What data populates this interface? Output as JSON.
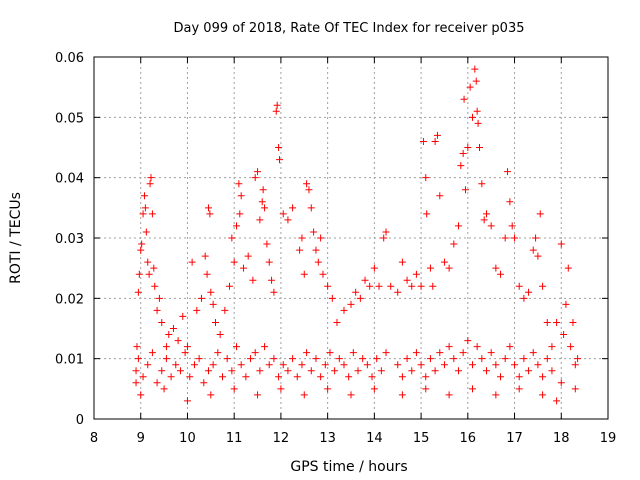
{
  "chart_data": {
    "type": "scatter",
    "title": "Day 099 of 2018, Rate Of TEC Index for receiver p035",
    "xlabel": "GPS time / hours",
    "ylabel": "ROTI / TECUs",
    "xlim": [
      8,
      19
    ],
    "ylim": [
      0,
      0.06
    ],
    "xticks": [
      8,
      9,
      10,
      11,
      12,
      13,
      14,
      15,
      16,
      17,
      18,
      19
    ],
    "yticks": [
      0,
      0.01,
      0.02,
      0.03,
      0.04,
      0.05,
      0.06
    ],
    "ytick_labels": [
      "0",
      "0.01",
      "0.02",
      "0.03",
      "0.04",
      "0.05",
      "0.06"
    ],
    "grid": true,
    "marker": "+",
    "color": "#ff0000",
    "series": [
      {
        "name": "p035",
        "points": [
          [
            8.9,
            0.008
          ],
          [
            8.92,
            0.012
          ],
          [
            8.95,
            0.021
          ],
          [
            8.97,
            0.024
          ],
          [
            9.0,
            0.028
          ],
          [
            9.02,
            0.029
          ],
          [
            9.05,
            0.034
          ],
          [
            9.08,
            0.037
          ],
          [
            9.1,
            0.035
          ],
          [
            9.12,
            0.031
          ],
          [
            9.15,
            0.026
          ],
          [
            9.18,
            0.024
          ],
          [
            9.2,
            0.039
          ],
          [
            9.22,
            0.04
          ],
          [
            9.25,
            0.034
          ],
          [
            9.28,
            0.025
          ],
          [
            9.3,
            0.022
          ],
          [
            9.35,
            0.018
          ],
          [
            9.4,
            0.02
          ],
          [
            9.45,
            0.016
          ],
          [
            9.55,
            0.012
          ],
          [
            9.6,
            0.014
          ],
          [
            9.7,
            0.015
          ],
          [
            9.8,
            0.013
          ],
          [
            9.9,
            0.017
          ],
          [
            10.0,
            0.012
          ],
          [
            10.1,
            0.026
          ],
          [
            10.2,
            0.018
          ],
          [
            10.3,
            0.02
          ],
          [
            10.38,
            0.027
          ],
          [
            10.42,
            0.024
          ],
          [
            10.45,
            0.035
          ],
          [
            10.48,
            0.034
          ],
          [
            10.5,
            0.021
          ],
          [
            10.55,
            0.019
          ],
          [
            10.6,
            0.016
          ],
          [
            10.7,
            0.014
          ],
          [
            10.8,
            0.018
          ],
          [
            10.9,
            0.022
          ],
          [
            10.95,
            0.03
          ],
          [
            11.0,
            0.026
          ],
          [
            11.05,
            0.032
          ],
          [
            11.1,
            0.039
          ],
          [
            11.12,
            0.034
          ],
          [
            11.15,
            0.037
          ],
          [
            11.2,
            0.025
          ],
          [
            11.3,
            0.027
          ],
          [
            11.4,
            0.023
          ],
          [
            11.45,
            0.04
          ],
          [
            11.5,
            0.041
          ],
          [
            11.55,
            0.033
          ],
          [
            11.6,
            0.036
          ],
          [
            11.62,
            0.038
          ],
          [
            11.65,
            0.035
          ],
          [
            11.7,
            0.029
          ],
          [
            11.75,
            0.026
          ],
          [
            11.8,
            0.023
          ],
          [
            11.85,
            0.021
          ],
          [
            11.9,
            0.051
          ],
          [
            11.92,
            0.052
          ],
          [
            11.95,
            0.045
          ],
          [
            11.97,
            0.043
          ],
          [
            12.05,
            0.034
          ],
          [
            12.15,
            0.033
          ],
          [
            12.25,
            0.035
          ],
          [
            12.4,
            0.028
          ],
          [
            12.45,
            0.03
          ],
          [
            12.5,
            0.024
          ],
          [
            12.55,
            0.039
          ],
          [
            12.6,
            0.038
          ],
          [
            12.65,
            0.035
          ],
          [
            12.7,
            0.031
          ],
          [
            12.75,
            0.028
          ],
          [
            12.8,
            0.026
          ],
          [
            12.85,
            0.03
          ],
          [
            12.9,
            0.024
          ],
          [
            13.0,
            0.022
          ],
          [
            13.1,
            0.02
          ],
          [
            13.2,
            0.016
          ],
          [
            13.35,
            0.018
          ],
          [
            13.5,
            0.019
          ],
          [
            13.6,
            0.021
          ],
          [
            13.7,
            0.02
          ],
          [
            13.8,
            0.023
          ],
          [
            13.9,
            0.022
          ],
          [
            14.0,
            0.025
          ],
          [
            14.1,
            0.022
          ],
          [
            14.2,
            0.03
          ],
          [
            14.25,
            0.031
          ],
          [
            14.35,
            0.022
          ],
          [
            14.5,
            0.021
          ],
          [
            14.6,
            0.026
          ],
          [
            14.7,
            0.023
          ],
          [
            14.8,
            0.022
          ],
          [
            14.9,
            0.024
          ],
          [
            15.0,
            0.022
          ],
          [
            15.05,
            0.046
          ],
          [
            15.1,
            0.04
          ],
          [
            15.12,
            0.034
          ],
          [
            15.2,
            0.025
          ],
          [
            15.25,
            0.022
          ],
          [
            15.3,
            0.046
          ],
          [
            15.35,
            0.047
          ],
          [
            15.4,
            0.037
          ],
          [
            15.5,
            0.026
          ],
          [
            15.6,
            0.025
          ],
          [
            15.7,
            0.029
          ],
          [
            15.8,
            0.032
          ],
          [
            15.85,
            0.042
          ],
          [
            15.9,
            0.044
          ],
          [
            15.92,
            0.053
          ],
          [
            15.95,
            0.038
          ],
          [
            16.0,
            0.045
          ],
          [
            16.05,
            0.055
          ],
          [
            16.1,
            0.05
          ],
          [
            16.15,
            0.058
          ],
          [
            16.18,
            0.056
          ],
          [
            16.2,
            0.051
          ],
          [
            16.22,
            0.049
          ],
          [
            16.25,
            0.045
          ],
          [
            16.3,
            0.039
          ],
          [
            16.35,
            0.033
          ],
          [
            16.4,
            0.034
          ],
          [
            16.5,
            0.032
          ],
          [
            16.6,
            0.025
          ],
          [
            16.7,
            0.024
          ],
          [
            16.8,
            0.03
          ],
          [
            16.85,
            0.041
          ],
          [
            16.9,
            0.036
          ],
          [
            16.95,
            0.032
          ],
          [
            17.0,
            0.03
          ],
          [
            17.1,
            0.022
          ],
          [
            17.2,
            0.02
          ],
          [
            17.3,
            0.021
          ],
          [
            17.4,
            0.028
          ],
          [
            17.45,
            0.03
          ],
          [
            17.5,
            0.027
          ],
          [
            17.55,
            0.034
          ],
          [
            17.6,
            0.022
          ],
          [
            17.7,
            0.016
          ],
          [
            17.8,
            0.012
          ],
          [
            17.9,
            0.016
          ],
          [
            18.0,
            0.029
          ],
          [
            18.05,
            0.014
          ],
          [
            18.1,
            0.019
          ],
          [
            18.15,
            0.025
          ],
          [
            18.2,
            0.012
          ],
          [
            18.25,
            0.016
          ],
          [
            18.3,
            0.009
          ],
          [
            18.35,
            0.01
          ],
          [
            8.9,
            0.006
          ],
          [
            8.95,
            0.01
          ],
          [
            9.05,
            0.007
          ],
          [
            9.15,
            0.009
          ],
          [
            9.25,
            0.011
          ],
          [
            9.35,
            0.006
          ],
          [
            9.45,
            0.008
          ],
          [
            9.55,
            0.01
          ],
          [
            9.65,
            0.007
          ],
          [
            9.75,
            0.009
          ],
          [
            9.85,
            0.008
          ],
          [
            9.95,
            0.011
          ],
          [
            10.05,
            0.007
          ],
          [
            10.15,
            0.009
          ],
          [
            10.25,
            0.01
          ],
          [
            10.35,
            0.006
          ],
          [
            10.45,
            0.008
          ],
          [
            10.55,
            0.009
          ],
          [
            10.65,
            0.011
          ],
          [
            10.75,
            0.007
          ],
          [
            10.85,
            0.01
          ],
          [
            10.95,
            0.008
          ],
          [
            11.05,
            0.012
          ],
          [
            11.15,
            0.009
          ],
          [
            11.25,
            0.007
          ],
          [
            11.35,
            0.01
          ],
          [
            11.45,
            0.011
          ],
          [
            11.55,
            0.008
          ],
          [
            11.65,
            0.012
          ],
          [
            11.75,
            0.009
          ],
          [
            11.85,
            0.01
          ],
          [
            11.95,
            0.007
          ],
          [
            12.05,
            0.009
          ],
          [
            12.15,
            0.008
          ],
          [
            12.25,
            0.01
          ],
          [
            12.35,
            0.007
          ],
          [
            12.45,
            0.009
          ],
          [
            12.55,
            0.011
          ],
          [
            12.65,
            0.008
          ],
          [
            12.75,
            0.01
          ],
          [
            12.85,
            0.007
          ],
          [
            12.95,
            0.009
          ],
          [
            13.05,
            0.011
          ],
          [
            13.15,
            0.008
          ],
          [
            13.25,
            0.01
          ],
          [
            13.35,
            0.009
          ],
          [
            13.45,
            0.007
          ],
          [
            13.55,
            0.011
          ],
          [
            13.65,
            0.008
          ],
          [
            13.75,
            0.01
          ],
          [
            13.85,
            0.009
          ],
          [
            13.95,
            0.007
          ],
          [
            14.05,
            0.01
          ],
          [
            14.15,
            0.008
          ],
          [
            14.25,
            0.011
          ],
          [
            14.5,
            0.009
          ],
          [
            14.6,
            0.007
          ],
          [
            14.7,
            0.01
          ],
          [
            14.8,
            0.008
          ],
          [
            14.9,
            0.011
          ],
          [
            15.0,
            0.009
          ],
          [
            15.1,
            0.007
          ],
          [
            15.2,
            0.01
          ],
          [
            15.3,
            0.008
          ],
          [
            15.4,
            0.011
          ],
          [
            15.5,
            0.009
          ],
          [
            15.6,
            0.012
          ],
          [
            15.7,
            0.01
          ],
          [
            15.8,
            0.008
          ],
          [
            15.9,
            0.011
          ],
          [
            16.0,
            0.013
          ],
          [
            16.1,
            0.009
          ],
          [
            16.2,
            0.012
          ],
          [
            16.3,
            0.01
          ],
          [
            16.4,
            0.008
          ],
          [
            16.5,
            0.011
          ],
          [
            16.6,
            0.009
          ],
          [
            16.7,
            0.007
          ],
          [
            16.8,
            0.01
          ],
          [
            16.9,
            0.012
          ],
          [
            17.0,
            0.009
          ],
          [
            17.1,
            0.007
          ],
          [
            17.2,
            0.01
          ],
          [
            17.3,
            0.008
          ],
          [
            17.4,
            0.011
          ],
          [
            17.5,
            0.009
          ],
          [
            17.6,
            0.007
          ],
          [
            17.7,
            0.01
          ],
          [
            17.8,
            0.008
          ],
          [
            18.0,
            0.006
          ],
          [
            9.0,
            0.004
          ],
          [
            9.5,
            0.005
          ],
          [
            10.0,
            0.003
          ],
          [
            10.5,
            0.004
          ],
          [
            11.0,
            0.005
          ],
          [
            11.5,
            0.004
          ],
          [
            12.0,
            0.005
          ],
          [
            12.5,
            0.004
          ],
          [
            13.0,
            0.005
          ],
          [
            13.5,
            0.004
          ],
          [
            14.0,
            0.005
          ],
          [
            14.6,
            0.004
          ],
          [
            15.1,
            0.005
          ],
          [
            15.6,
            0.004
          ],
          [
            16.1,
            0.005
          ],
          [
            16.6,
            0.004
          ],
          [
            17.1,
            0.005
          ],
          [
            17.6,
            0.004
          ],
          [
            17.9,
            0.003
          ],
          [
            18.3,
            0.005
          ]
        ]
      }
    ]
  }
}
